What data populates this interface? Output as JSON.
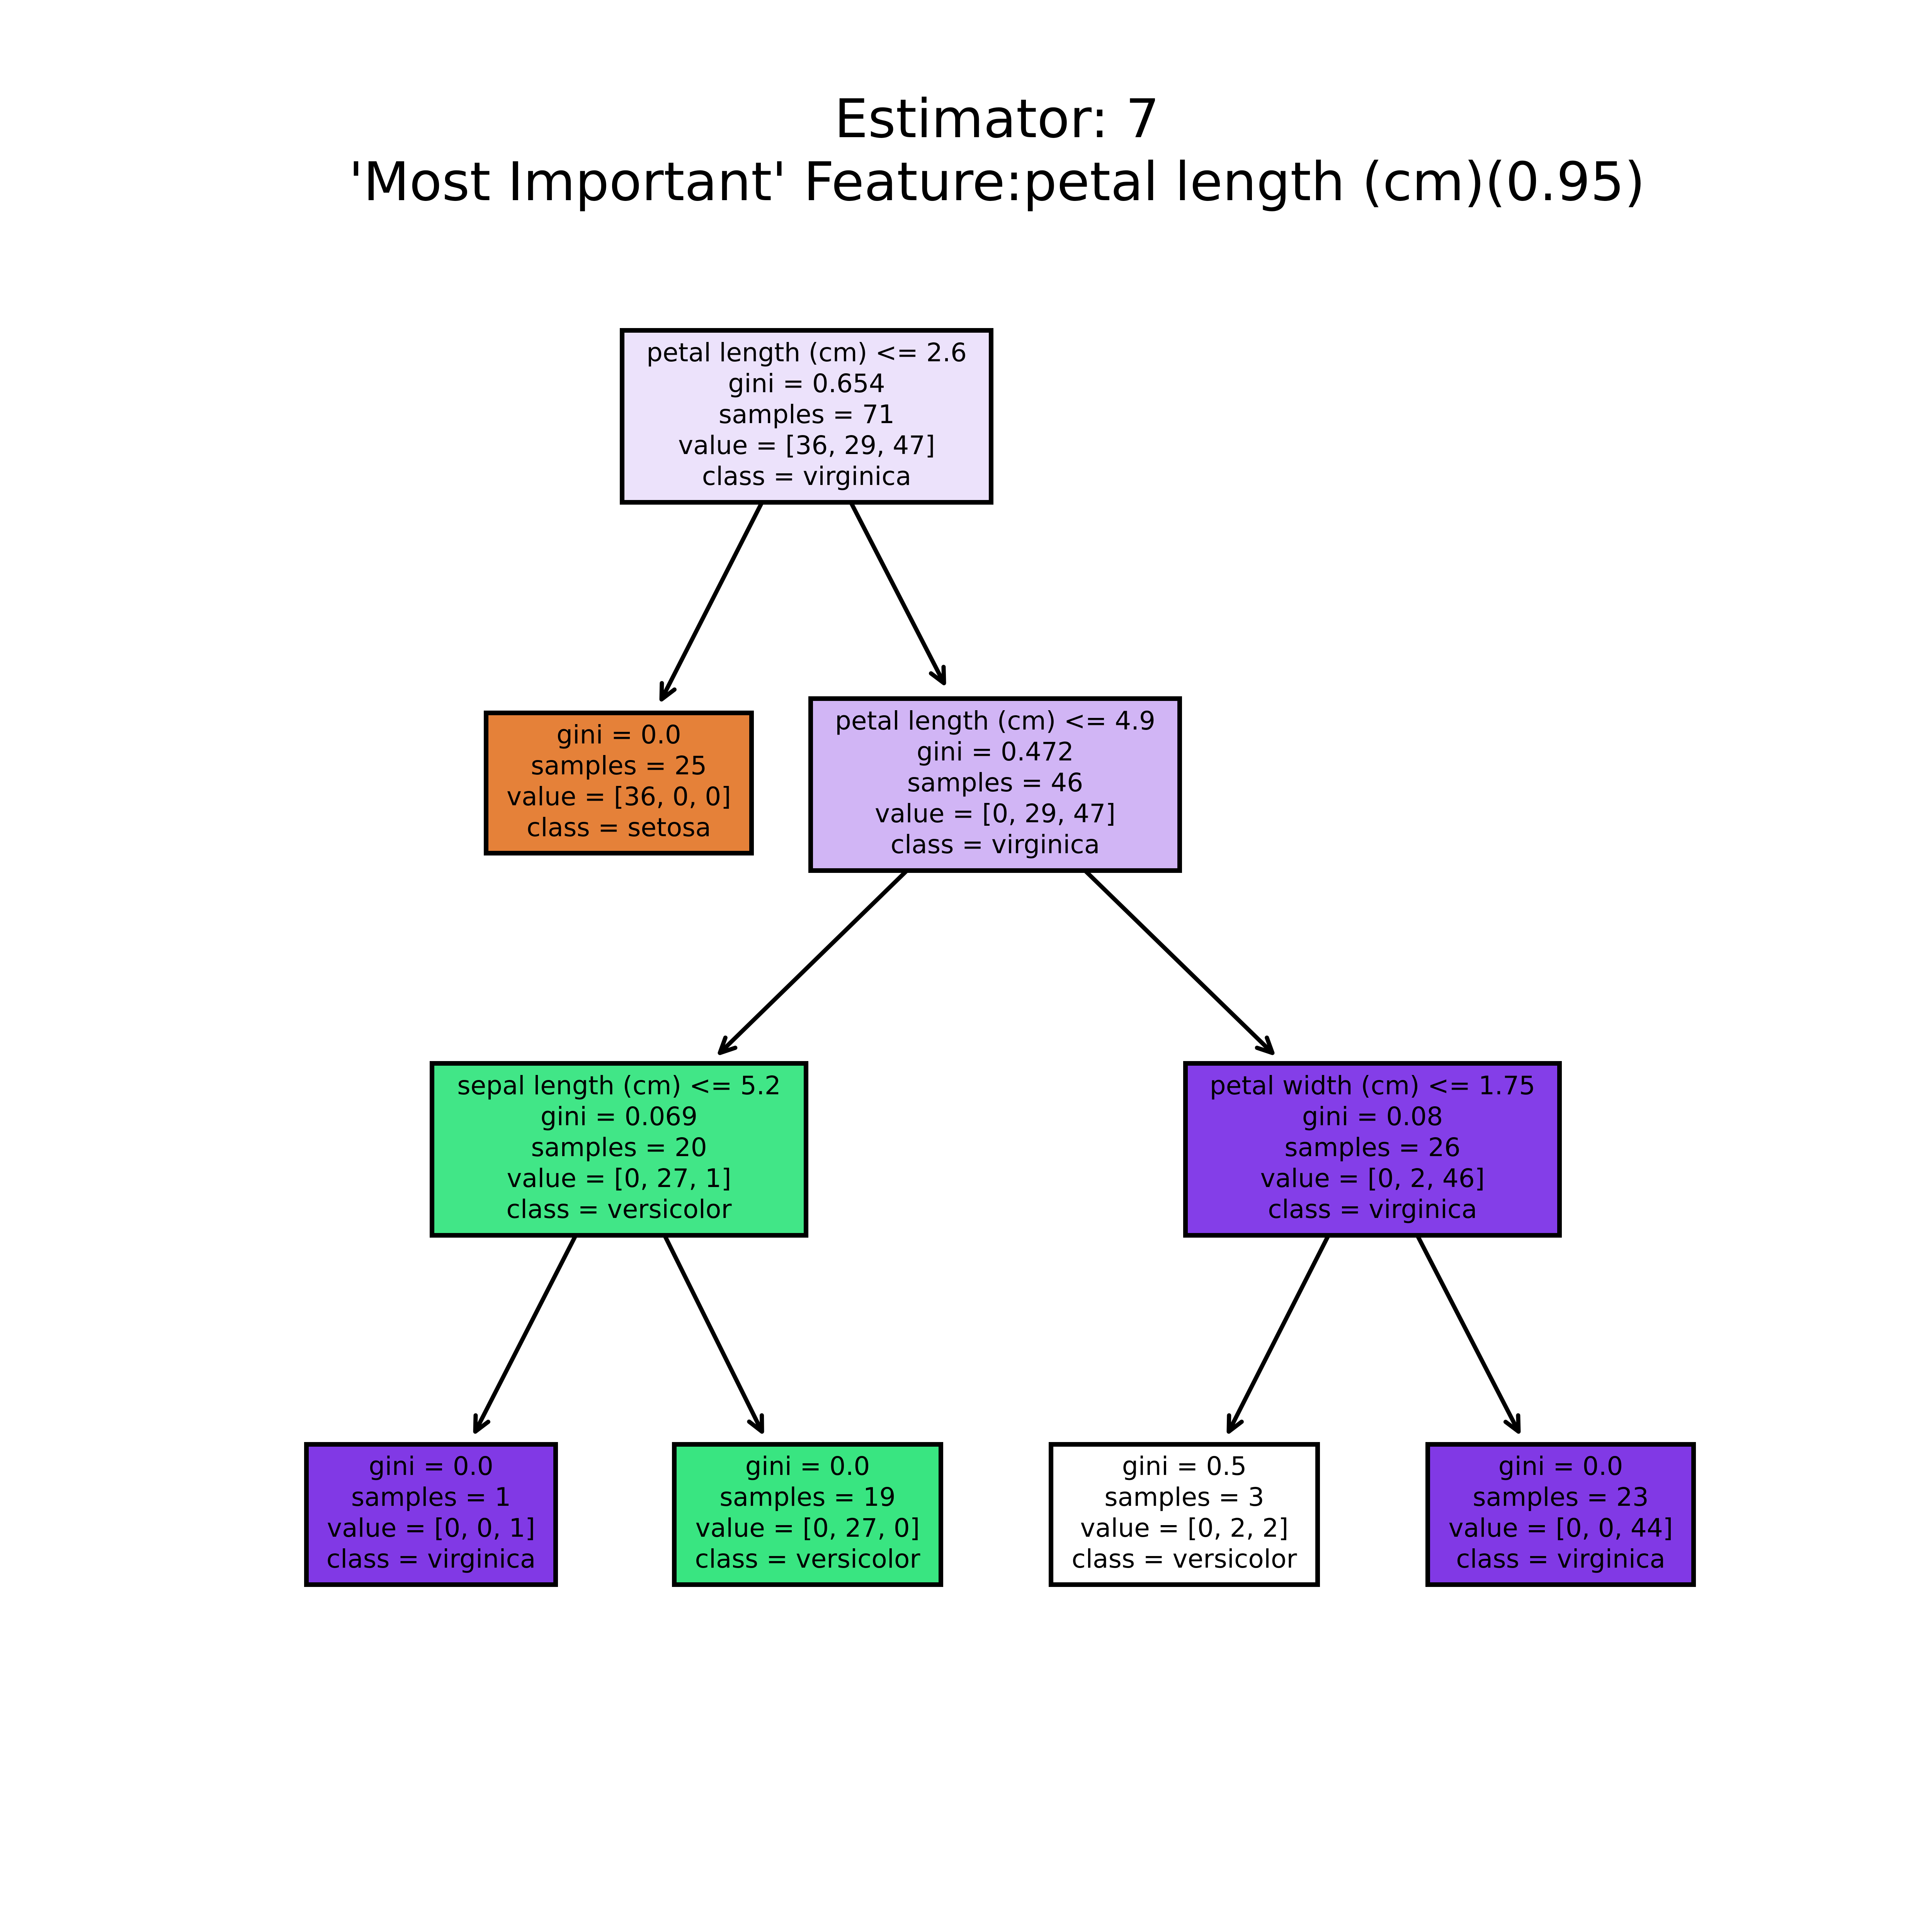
{
  "title": {
    "line1": "Estimator: 7",
    "line2": "'Most Important' Feature:petal length (cm)(0.95)"
  },
  "tree": {
    "nodes": [
      {
        "id": "n0",
        "color": "#ece2fb",
        "lines": [
          "petal length (cm) <= 2.6",
          "gini = 0.654",
          "samples = 71",
          "value = [36, 29, 47]",
          "class = virginica"
        ]
      },
      {
        "id": "n1",
        "color": "#e58139",
        "lines": [
          "gini = 0.0",
          "samples = 25",
          "value = [36, 0, 0]",
          "class = setosa"
        ]
      },
      {
        "id": "n2",
        "color": "#d1b5f5",
        "lines": [
          "petal length (cm) <= 4.9",
          "gini = 0.472",
          "samples = 46",
          "value = [0, 29, 47]",
          "class = virginica"
        ]
      },
      {
        "id": "n3",
        "color": "#41e687",
        "lines": [
          "sepal length (cm) <= 5.2",
          "gini = 0.069",
          "samples = 20",
          "value = [0, 27, 1]",
          "class = versicolor"
        ]
      },
      {
        "id": "n4",
        "color": "#843ee8",
        "lines": [
          "petal width (cm) <= 1.75",
          "gini = 0.08",
          "samples = 26",
          "value = [0, 2, 46]",
          "class = virginica"
        ]
      },
      {
        "id": "n5",
        "color": "#8139e5",
        "lines": [
          "gini = 0.0",
          "samples = 1",
          "value = [0, 0, 1]",
          "class = virginica"
        ]
      },
      {
        "id": "n6",
        "color": "#39e581",
        "lines": [
          "gini = 0.0",
          "samples = 19",
          "value = [0, 27, 0]",
          "class = versicolor"
        ]
      },
      {
        "id": "n7",
        "color": "#ffffff",
        "lines": [
          "gini = 0.5",
          "samples = 3",
          "value = [0, 2, 2]",
          "class = versicolor"
        ]
      },
      {
        "id": "n8",
        "color": "#8139e5",
        "lines": [
          "gini = 0.0",
          "samples = 23",
          "value = [0, 0, 44]",
          "class = virginica"
        ]
      }
    ],
    "edges": [
      [
        "n0",
        "n1"
      ],
      [
        "n0",
        "n2"
      ],
      [
        "n2",
        "n3"
      ],
      [
        "n2",
        "n4"
      ],
      [
        "n3",
        "n5"
      ],
      [
        "n3",
        "n6"
      ],
      [
        "n4",
        "n7"
      ],
      [
        "n4",
        "n8"
      ]
    ]
  }
}
